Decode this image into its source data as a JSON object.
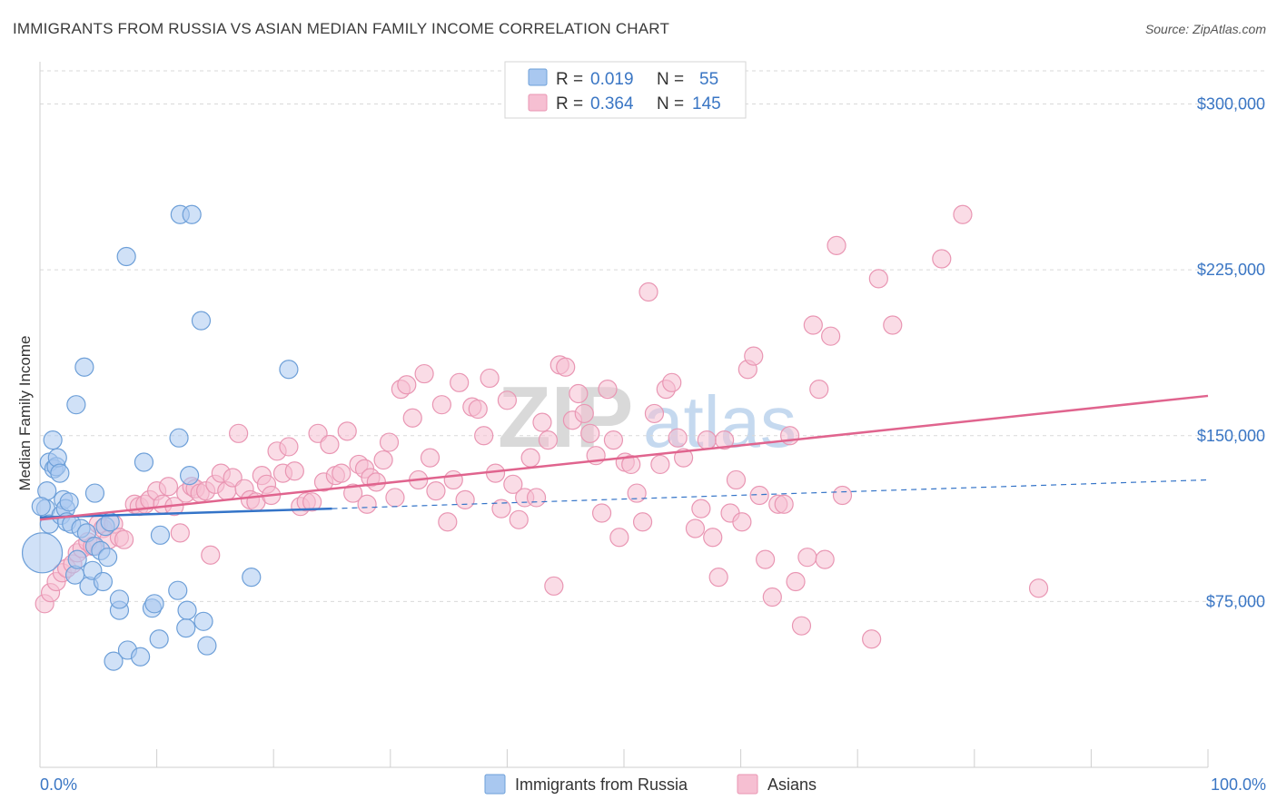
{
  "title": "IMMIGRANTS FROM RUSSIA VS ASIAN MEDIAN FAMILY INCOME CORRELATION CHART",
  "source": "Source: ZipAtlas.com",
  "watermark": {
    "zip": "ZIP",
    "atlas": "atlas"
  },
  "stats": {
    "r_label": "R =",
    "n_label": "N =",
    "russia": {
      "r": "0.019",
      "n": "55"
    },
    "asians": {
      "r": "0.364",
      "n": "145"
    }
  },
  "colors": {
    "russia_fill": "#a9c8f0",
    "russia_stroke": "#6d9fd8",
    "russia_line": "#3474c8",
    "asians_fill": "#f6bfd2",
    "asians_stroke": "#e996b3",
    "asians_line": "#e0648e",
    "grid": "#d9d9d9",
    "tick_text": "#3a76c4"
  },
  "chart_data": {
    "type": "scatter",
    "title": "IMMIGRANTS FROM RUSSIA VS ASIAN MEDIAN FAMILY INCOME CORRELATION CHART",
    "xlabel": "",
    "ylabel": "Median Family Income",
    "xlim": [
      0,
      100
    ],
    "ylim": [
      0,
      315000
    ],
    "x_tick_labels": [
      "0.0%",
      "100.0%"
    ],
    "y_ticks": [
      {
        "value": 75000,
        "label": "$75,000"
      },
      {
        "value": 150000,
        "label": "$150,000"
      },
      {
        "value": 225000,
        "label": "$225,000"
      },
      {
        "value": 300000,
        "label": "$300,000"
      }
    ],
    "legend": [
      "Immigrants from Russia",
      "Asians"
    ],
    "series": [
      {
        "name": "Immigrants from Russia",
        "trend": {
          "x0": 0,
          "y0": 113000,
          "x1": 25,
          "y1": 117000,
          "dash_x1": 100,
          "dash_y1": 130000
        },
        "points": [
          [
            0.2,
            97000
          ],
          [
            0.5,
            117000
          ],
          [
            0.6,
            125000
          ],
          [
            0.8,
            110000
          ],
          [
            0.8,
            138000
          ],
          [
            1.1,
            148000
          ],
          [
            1.2,
            135000
          ],
          [
            1.4,
            136000
          ],
          [
            1.5,
            140000
          ],
          [
            1.7,
            133000
          ],
          [
            1.8,
            114000
          ],
          [
            2.0,
            121000
          ],
          [
            2.2,
            117000
          ],
          [
            2.3,
            111000
          ],
          [
            2.5,
            120000
          ],
          [
            2.7,
            110000
          ],
          [
            3.0,
            87000
          ],
          [
            3.1,
            164000
          ],
          [
            3.2,
            94000
          ],
          [
            3.5,
            108000
          ],
          [
            3.8,
            181000
          ],
          [
            4.0,
            106000
          ],
          [
            4.2,
            82000
          ],
          [
            4.5,
            89000
          ],
          [
            4.7,
            100000
          ],
          [
            4.7,
            124000
          ],
          [
            5.2,
            98000
          ],
          [
            5.4,
            84000
          ],
          [
            5.6,
            109000
          ],
          [
            5.8,
            95000
          ],
          [
            6.0,
            111000
          ],
          [
            6.3,
            48000
          ],
          [
            6.8,
            71000
          ],
          [
            6.8,
            76000
          ],
          [
            7.4,
            231000
          ],
          [
            7.5,
            53000
          ],
          [
            8.6,
            50000
          ],
          [
            8.9,
            138000
          ],
          [
            9.6,
            72000
          ],
          [
            9.8,
            74000
          ],
          [
            10.2,
            58000
          ],
          [
            10.3,
            105000
          ],
          [
            11.8,
            80000
          ],
          [
            11.9,
            149000
          ],
          [
            12.0,
            250000
          ],
          [
            12.5,
            63000
          ],
          [
            12.6,
            71000
          ],
          [
            12.8,
            132000
          ],
          [
            13.0,
            250000
          ],
          [
            13.8,
            202000
          ],
          [
            14.0,
            66000
          ],
          [
            14.3,
            55000
          ],
          [
            18.1,
            86000
          ],
          [
            21.3,
            180000
          ],
          [
            0.1,
            118000
          ]
        ],
        "sizes": [
          1,
          0,
          0,
          0,
          0,
          0,
          0,
          0,
          0,
          0,
          0,
          0,
          0,
          0,
          0,
          0,
          0,
          0,
          0,
          0,
          0,
          0,
          0,
          0,
          0,
          0,
          0,
          0,
          0,
          0,
          0,
          0,
          0,
          0,
          0,
          0,
          0,
          0,
          0,
          0,
          0,
          0,
          0,
          0,
          0,
          0,
          0,
          0,
          0,
          0,
          0,
          0,
          0,
          0,
          0
        ]
      },
      {
        "name": "Asians",
        "trend": {
          "x0": 0,
          "y0": 112000,
          "x1": 100,
          "y1": 168000
        },
        "points": [
          [
            0.4,
            74000
          ],
          [
            0.9,
            79000
          ],
          [
            1.4,
            84000
          ],
          [
            1.9,
            88000
          ],
          [
            2.3,
            90000
          ],
          [
            2.8,
            92000
          ],
          [
            3.2,
            97000
          ],
          [
            3.6,
            99000
          ],
          [
            4.1,
            102000
          ],
          [
            4.5,
            100000
          ],
          [
            5.0,
            110000
          ],
          [
            5.4,
            108000
          ],
          [
            5.9,
            103000
          ],
          [
            6.3,
            110000
          ],
          [
            6.8,
            104000
          ],
          [
            7.2,
            103000
          ],
          [
            8.1,
            119000
          ],
          [
            8.5,
            118000
          ],
          [
            9.0,
            119000
          ],
          [
            9.4,
            121000
          ],
          [
            10.0,
            125000
          ],
          [
            10.5,
            119000
          ],
          [
            11.0,
            127000
          ],
          [
            11.5,
            118000
          ],
          [
            12.0,
            106000
          ],
          [
            12.5,
            124000
          ],
          [
            13.0,
            127000
          ],
          [
            13.3,
            126000
          ],
          [
            13.7,
            124000
          ],
          [
            14.2,
            125000
          ],
          [
            14.6,
            96000
          ],
          [
            15.0,
            128000
          ],
          [
            15.5,
            133000
          ],
          [
            16.0,
            125000
          ],
          [
            16.5,
            131000
          ],
          [
            17.0,
            151000
          ],
          [
            17.5,
            126000
          ],
          [
            18.0,
            121000
          ],
          [
            18.5,
            120000
          ],
          [
            19.0,
            132000
          ],
          [
            19.4,
            128000
          ],
          [
            19.8,
            123000
          ],
          [
            20.3,
            143000
          ],
          [
            20.8,
            133000
          ],
          [
            21.3,
            145000
          ],
          [
            21.8,
            134000
          ],
          [
            22.3,
            118000
          ],
          [
            22.8,
            120000
          ],
          [
            23.3,
            120000
          ],
          [
            23.8,
            151000
          ],
          [
            24.3,
            129000
          ],
          [
            24.8,
            146000
          ],
          [
            25.3,
            132000
          ],
          [
            25.8,
            133000
          ],
          [
            26.3,
            152000
          ],
          [
            26.8,
            124000
          ],
          [
            27.3,
            137000
          ],
          [
            27.8,
            135000
          ],
          [
            28.3,
            131000
          ],
          [
            28.8,
            129000
          ],
          [
            29.4,
            139000
          ],
          [
            29.9,
            147000
          ],
          [
            30.4,
            122000
          ],
          [
            30.9,
            171000
          ],
          [
            31.4,
            173000
          ],
          [
            31.9,
            158000
          ],
          [
            32.4,
            130000
          ],
          [
            32.9,
            178000
          ],
          [
            33.4,
            140000
          ],
          [
            33.9,
            125000
          ],
          [
            34.4,
            164000
          ],
          [
            34.9,
            111000
          ],
          [
            35.4,
            130000
          ],
          [
            35.9,
            174000
          ],
          [
            36.4,
            121000
          ],
          [
            37.0,
            163000
          ],
          [
            37.5,
            162000
          ],
          [
            38.0,
            150000
          ],
          [
            38.5,
            176000
          ],
          [
            39.0,
            133000
          ],
          [
            39.5,
            117000
          ],
          [
            40.0,
            166000
          ],
          [
            40.5,
            128000
          ],
          [
            41.0,
            112000
          ],
          [
            41.5,
            122000
          ],
          [
            42.0,
            140000
          ],
          [
            42.5,
            122000
          ],
          [
            43.0,
            156000
          ],
          [
            43.5,
            148000
          ],
          [
            44.0,
            82000
          ],
          [
            44.5,
            182000
          ],
          [
            45.0,
            181000
          ],
          [
            45.6,
            157000
          ],
          [
            46.1,
            169000
          ],
          [
            46.6,
            160000
          ],
          [
            47.1,
            151000
          ],
          [
            47.6,
            141000
          ],
          [
            48.1,
            115000
          ],
          [
            48.6,
            171000
          ],
          [
            49.1,
            148000
          ],
          [
            49.6,
            104000
          ],
          [
            50.1,
            138000
          ],
          [
            50.6,
            137000
          ],
          [
            51.1,
            124000
          ],
          [
            51.6,
            111000
          ],
          [
            52.1,
            215000
          ],
          [
            52.6,
            160000
          ],
          [
            53.1,
            137000
          ],
          [
            53.6,
            171000
          ],
          [
            54.1,
            174000
          ],
          [
            54.6,
            149000
          ],
          [
            55.1,
            140000
          ],
          [
            56.1,
            108000
          ],
          [
            56.6,
            117000
          ],
          [
            57.1,
            148000
          ],
          [
            57.6,
            104000
          ],
          [
            58.1,
            86000
          ],
          [
            58.6,
            148000
          ],
          [
            59.1,
            115000
          ],
          [
            59.6,
            130000
          ],
          [
            60.1,
            111000
          ],
          [
            60.6,
            180000
          ],
          [
            61.1,
            186000
          ],
          [
            61.6,
            123000
          ],
          [
            62.1,
            94000
          ],
          [
            62.7,
            77000
          ],
          [
            63.2,
            119000
          ],
          [
            63.7,
            119000
          ],
          [
            64.2,
            150000
          ],
          [
            64.7,
            84000
          ],
          [
            65.2,
            64000
          ],
          [
            65.7,
            95000
          ],
          [
            66.2,
            200000
          ],
          [
            66.7,
            171000
          ],
          [
            67.2,
            94000
          ],
          [
            67.7,
            195000
          ],
          [
            68.2,
            236000
          ],
          [
            68.7,
            123000
          ],
          [
            71.2,
            58000
          ],
          [
            71.8,
            221000
          ],
          [
            73.0,
            200000
          ],
          [
            77.2,
            230000
          ],
          [
            79.0,
            250000
          ],
          [
            85.5,
            81000
          ],
          [
            28.0,
            119000
          ]
        ]
      }
    ]
  },
  "legend_bottom": {
    "russia": "Immigrants from Russia",
    "asians": "Asians"
  }
}
